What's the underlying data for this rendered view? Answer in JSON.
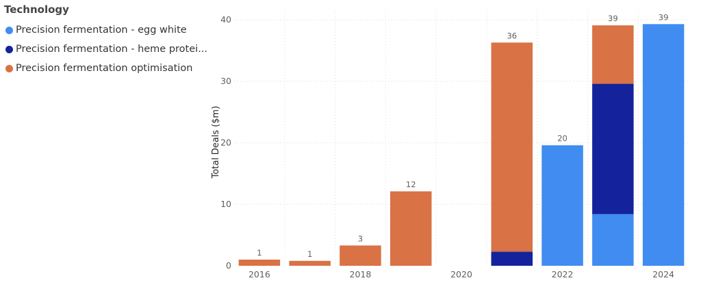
{
  "legend": {
    "title": "Technology",
    "items": [
      {
        "label": "Precision fermentation - egg white",
        "color": "#418CF0",
        "icon": "circle-icon"
      },
      {
        "label": "Precision fermentation - heme protei...",
        "color": "#14239B",
        "icon": "circle-icon"
      },
      {
        "label": "Precision fermentation optimisation",
        "color": "#D97245",
        "icon": "circle-icon"
      }
    ]
  },
  "chart_data": {
    "type": "bar",
    "stacked": true,
    "title": "",
    "xlabel": "",
    "ylabel": "Total Deals ($m)",
    "ylim": [
      0,
      40
    ],
    "y_ticks": [
      0,
      10,
      20,
      30,
      40
    ],
    "x_tick_labels": [
      "2016",
      "2018",
      "2020",
      "2022",
      "2024"
    ],
    "grid": true,
    "legend_position": "top-left",
    "categories": [
      "2016",
      "2017",
      "2018",
      "2019",
      "2020",
      "2021",
      "2022",
      "2023",
      "2024"
    ],
    "series": [
      {
        "name": "Precision fermentation - egg white",
        "color": "#418CF0",
        "values": [
          0,
          0,
          0,
          0,
          0,
          0,
          19.6,
          8.4,
          39.3
        ]
      },
      {
        "name": "Precision fermentation - heme protei...",
        "color": "#14239B",
        "values": [
          0,
          0,
          0,
          0,
          0,
          2.3,
          0,
          21.2,
          0
        ]
      },
      {
        "name": "Precision fermentation optimisation",
        "color": "#D97245",
        "values": [
          1.0,
          0.8,
          3.3,
          12.1,
          0,
          34.0,
          0,
          9.5,
          0
        ]
      }
    ],
    "totals": [
      "1",
      "1",
      "3",
      "12",
      "",
      "36",
      "20",
      "39",
      "39"
    ]
  }
}
